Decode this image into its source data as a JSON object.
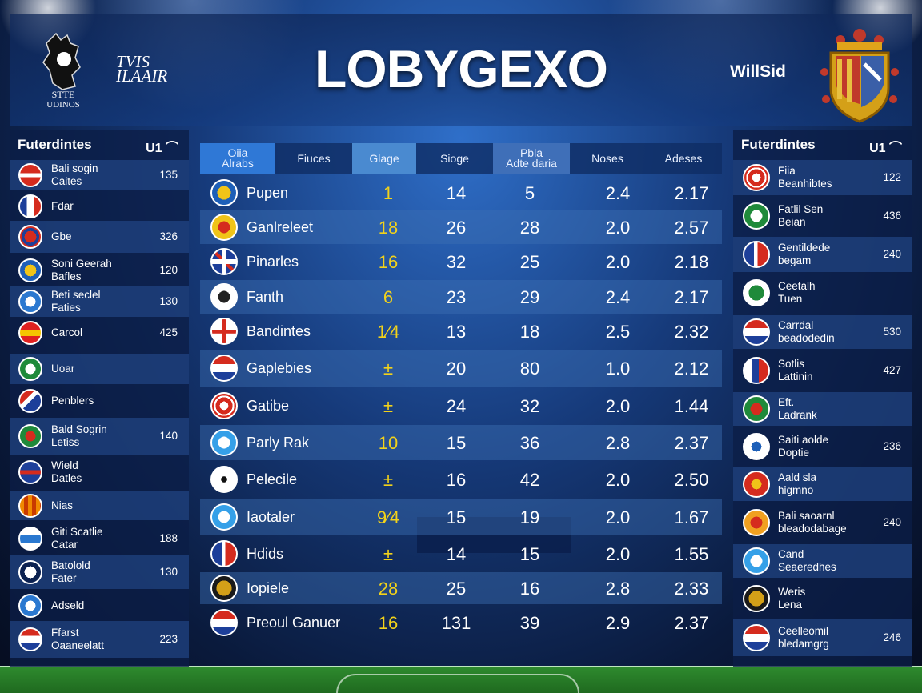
{
  "header": {
    "title": "LOBYGEXO",
    "left_brand_line1": "TVIS",
    "left_brand_line2": "ILAAIR",
    "right_brand": "WillSid",
    "crest_left_text": "STTE\nUDINOS"
  },
  "left_panel": {
    "title": "Futerdintes",
    "control": "U1 ⌒",
    "rows": [
      {
        "name": "Bali sogin\nCaites",
        "value": "135",
        "badge": "red-white"
      },
      {
        "name": "Fdar",
        "value": "",
        "badge": "blue-red"
      },
      {
        "name": "Gbe",
        "value": "326",
        "badge": "red-pattern"
      },
      {
        "name": "Soni Geerah\nBafles",
        "value": "120",
        "badge": "blue-gold"
      },
      {
        "name": "Beti seclel\nFaties",
        "value": "130",
        "badge": "white-blue"
      },
      {
        "name": "Carcol",
        "value": "425",
        "badge": "red-yellow"
      },
      {
        "name": "Uoar",
        "value": "",
        "badge": "green-white"
      },
      {
        "name": "Penblers",
        "value": "",
        "badge": "red-blue-stripe"
      },
      {
        "name": "Bald Sogrin\nLetiss",
        "value": "140",
        "badge": "green-red"
      },
      {
        "name": "Wield\nDatles",
        "value": "",
        "badge": "blue-cross"
      },
      {
        "name": "Nias",
        "value": "",
        "badge": "orange-stripe"
      },
      {
        "name": "Giti Scatlie\nCatar",
        "value": "188",
        "badge": "white-blue-stripe"
      },
      {
        "name": "Batolold\nFater",
        "value": "130",
        "badge": "white-navy"
      },
      {
        "name": "Adseld",
        "value": "",
        "badge": "white-blue"
      },
      {
        "name": "Ffarst\nOaaneelatt",
        "value": "223",
        "badge": "red-white-stripe"
      }
    ]
  },
  "right_panel": {
    "title": "Futerdintes",
    "control": "U1 ⌒",
    "rows": [
      {
        "name": "Fiia\nBeanhibtes",
        "value": "122",
        "badge": "red-white-ring"
      },
      {
        "name": "Fatlil Sen\nBeian",
        "value": "436",
        "badge": "green-white"
      },
      {
        "name": "Gentildede\nbegam",
        "value": "240",
        "badge": "blue-red-stripe"
      },
      {
        "name": "Ceetalh\nTuen",
        "value": "",
        "badge": "green-tree"
      },
      {
        "name": "Carrdal\nbeadodedin",
        "value": "530",
        "badge": "red-white-blue"
      },
      {
        "name": "Sotlis\nLattinin",
        "value": "427",
        "badge": "blue-red-stripe2"
      },
      {
        "name": "Eft.\nLadrank",
        "value": "",
        "badge": "green-red"
      },
      {
        "name": "Saiti aolde\nDoptie",
        "value": "236",
        "badge": "blue-white"
      },
      {
        "name": "Aald sla\nhigmno",
        "value": "",
        "badge": "red-gold"
      },
      {
        "name": "Bali saoarnl\nbleadodabage",
        "value": "240",
        "badge": "orange-red"
      },
      {
        "name": "Cand\nSeaeredhes",
        "value": "",
        "badge": "sky-white"
      },
      {
        "name": "Weris\nLena",
        "value": "",
        "badge": "gold-black"
      },
      {
        "name": "Ceelleomil\nbledamgrg",
        "value": "246",
        "badge": "red-white-stripe"
      }
    ]
  },
  "table": {
    "headers": [
      "Oiia\nAlrabs",
      "Fiuces",
      "Glage",
      "Sioge",
      "Pbla\nAdte daria",
      "Noses",
      "Adeses"
    ],
    "rows": [
      {
        "team": "Pupen",
        "c1": "1",
        "c2": "14",
        "c3": "5",
        "c4": "2.4",
        "c5": "2.17",
        "badge": "blue-gold"
      },
      {
        "team": "Ganlreleet",
        "c1": "18",
        "c2": "26",
        "c3": "28",
        "c4": "2.0",
        "c5": "2.57",
        "badge": "gold-red"
      },
      {
        "team": "Pinarles",
        "c1": "16",
        "c2": "32",
        "c3": "25",
        "c4": "2.0",
        "c5": "2.18",
        "badge": "union-jack"
      },
      {
        "team": "Fanth",
        "c1": "6",
        "c2": "23",
        "c3": "29",
        "c4": "2.4",
        "c5": "2.17",
        "badge": "white-black"
      },
      {
        "team": "Bandintes",
        "c1": "1⁄4",
        "c2": "13",
        "c3": "18",
        "c4": "2.5",
        "c5": "2.32",
        "badge": "blue-red-cross"
      },
      {
        "team": "Gaplebies",
        "c1": "±",
        "c2": "20",
        "c3": "80",
        "c4": "1.0",
        "c5": "2.12",
        "badge": "red-white-blue"
      },
      {
        "team": "Gatibe",
        "c1": "±",
        "c2": "24",
        "c3": "32",
        "c4": "2.0",
        "c5": "1.44",
        "badge": "red-white-ring"
      },
      {
        "team": "Parly Rak",
        "c1": "10",
        "c2": "15",
        "c3": "36",
        "c4": "2.8",
        "c5": "2.37",
        "badge": "sky-white"
      },
      {
        "team": "Pelecile",
        "c1": "±",
        "c2": "16",
        "c3": "42",
        "c4": "2.0",
        "c5": "2.50",
        "badge": "ball"
      },
      {
        "team": "Iaotaler",
        "c1": "9⁄4",
        "c2": "15",
        "c3": "19",
        "c4": "2.0",
        "c5": "1.67",
        "badge": "sky-white"
      },
      {
        "team": "Hdids",
        "c1": "±",
        "c2": "14",
        "c3": "15",
        "c4": "2.0",
        "c5": "1.55",
        "badge": "blue-red-stripe"
      },
      {
        "team": "Iopiele",
        "c1": "28",
        "c2": "25",
        "c3": "16",
        "c4": "2.8",
        "c5": "2.33",
        "badge": "gold-black"
      },
      {
        "team": "Preoul Ganuer",
        "c1": "16",
        "c2": "131",
        "c3": "39",
        "c4": "2.9",
        "c5": "2.37",
        "badge": "red-white-blue"
      }
    ]
  },
  "colors": {
    "accent_yellow": "#f2d21a",
    "header_blue": "#2f78d6",
    "panel_navy": "#0c1e46"
  }
}
